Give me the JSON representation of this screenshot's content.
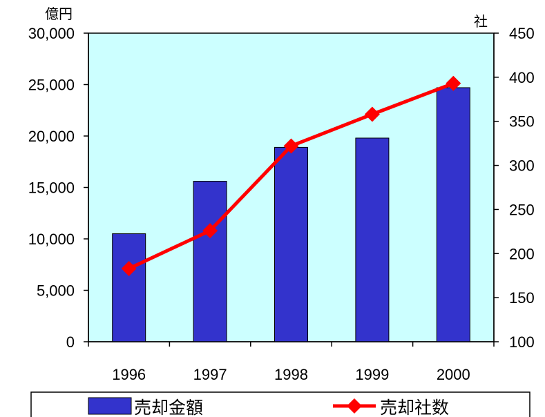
{
  "chart_data": {
    "type": "bar",
    "categories": [
      "1996",
      "1997",
      "1998",
      "1999",
      "2000"
    ],
    "series": [
      {
        "name": "売却金額",
        "type": "bar",
        "axis": "left",
        "values": [
          10500,
          15600,
          18900,
          19800,
          24700
        ],
        "color": "#3333cc"
      },
      {
        "name": "売却社数",
        "type": "line",
        "axis": "right",
        "values": [
          183,
          226,
          322,
          358,
          393
        ],
        "color": "#ff0000"
      }
    ],
    "y_left": {
      "unit": "億円",
      "ylim": [
        0,
        30000
      ],
      "ticks": [
        0,
        5000,
        10000,
        15000,
        20000,
        25000,
        30000
      ],
      "tick_labels": [
        "0",
        "5,000",
        "10,000",
        "15,000",
        "20,000",
        "25,000",
        "30,000"
      ]
    },
    "y_right": {
      "unit": "社",
      "ylim": [
        100,
        450
      ],
      "ticks": [
        100,
        150,
        200,
        250,
        300,
        350,
        400,
        450
      ],
      "tick_labels": [
        "100",
        "150",
        "200",
        "250",
        "300",
        "350",
        "400",
        "450"
      ]
    },
    "plot_background": "#ccffff",
    "grid": false,
    "legend_position": "bottom"
  }
}
